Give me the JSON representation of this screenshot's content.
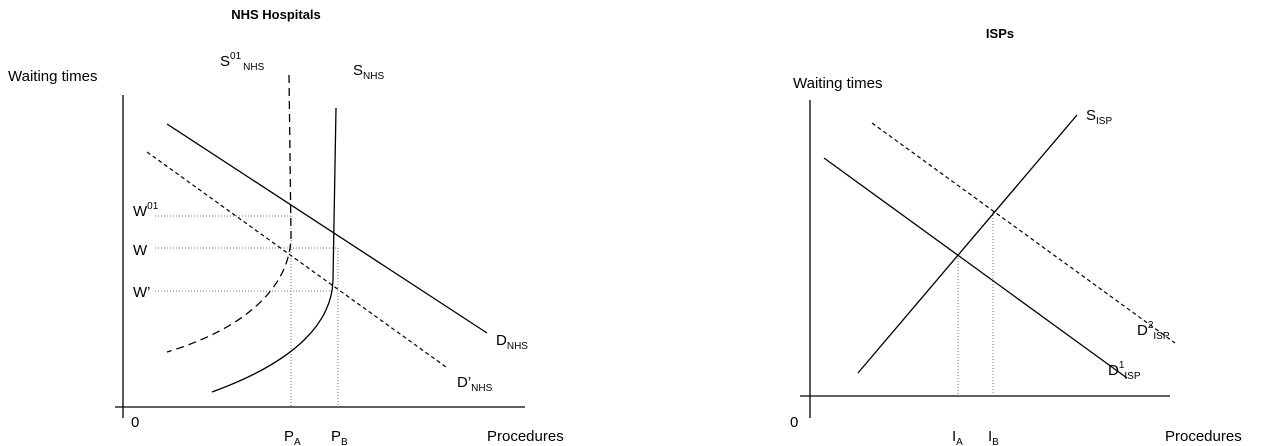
{
  "panels": [
    {
      "title": "NHS Hospitals",
      "y_axis_label": "Waiting times",
      "origin": "0",
      "x_axis_label": "Procedures",
      "curves": {
        "s01": {
          "base": "S",
          "sup": "01",
          "sub": "NHS"
        },
        "s": {
          "base": "S",
          "sub": "NHS"
        },
        "d": {
          "base": "D",
          "sub": "NHS"
        },
        "d_prime": {
          "base": "D’",
          "sub": "NHS"
        }
      },
      "y_ticks": [
        {
          "base": "W",
          "sup": "01"
        },
        {
          "base": "W"
        },
        {
          "base": "W’"
        }
      ],
      "x_ticks": [
        {
          "base": "P",
          "sub": "A"
        },
        {
          "base": "P",
          "sub": "B"
        }
      ]
    },
    {
      "title": "ISPs",
      "y_axis_label": "Waiting times",
      "origin": "0",
      "x_axis_label": "Procedures",
      "curves": {
        "s": {
          "base": "S",
          "sub": "ISP"
        },
        "d2": {
          "base": "D",
          "sup": "2",
          "sub": "ISP"
        },
        "d1": {
          "base": "D",
          "sup": "1",
          "sub": "ISP"
        }
      },
      "x_ticks": [
        {
          "base": "I",
          "sub": "A"
        },
        {
          "base": "I",
          "sub": "B"
        }
      ]
    }
  ]
}
